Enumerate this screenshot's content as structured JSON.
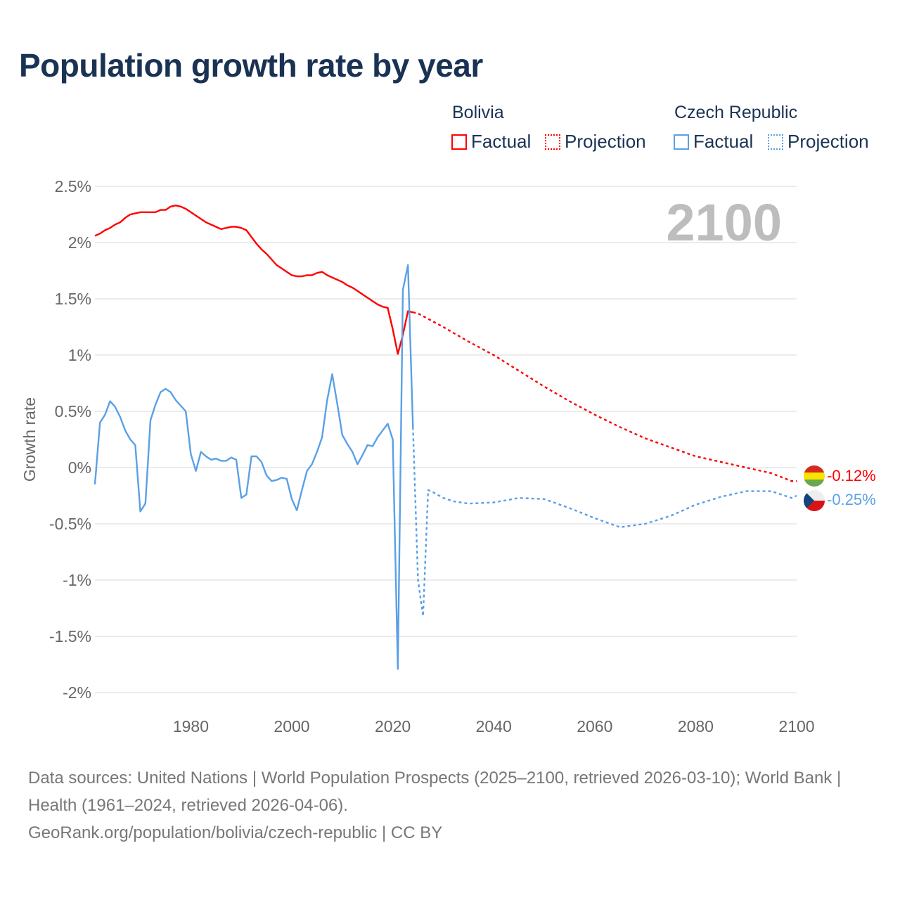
{
  "title": "Population growth rate by year",
  "legend": {
    "groups": [
      {
        "name": "Bolivia",
        "factual": "Factual",
        "projection": "Projection",
        "color": "#ff0000"
      },
      {
        "name": "Czech Republic",
        "factual": "Factual",
        "projection": "Projection",
        "color": "#5aa0e6"
      }
    ]
  },
  "year_label": "2100",
  "end_labels": {
    "bolivia": "-0.12%",
    "czech": "-0.25%"
  },
  "footer": {
    "line1": "Data sources: United Nations | World Population Prospects (2025–2100, retrieved 2026-03-10); World Bank | Health (1961–2024, retrieved 2026-04-06).",
    "line2": "GeoRank.org/population/bolivia/czech-republic | CC BY"
  },
  "chart_data": {
    "type": "line",
    "title": "Population growth rate by year",
    "xlabel": "",
    "ylabel": "Growth rate",
    "xlim": [
      1961,
      2100
    ],
    "ylim": [
      -2.1,
      2.6
    ],
    "x_ticks": [
      1980,
      2000,
      2020,
      2040,
      2060,
      2080,
      2100
    ],
    "y_ticks": [
      {
        "v": 2.5,
        "label": "2.5%"
      },
      {
        "v": 2,
        "label": "2%"
      },
      {
        "v": 1.5,
        "label": "1.5%"
      },
      {
        "v": 1,
        "label": "1%"
      },
      {
        "v": 0.5,
        "label": "0.5%"
      },
      {
        "v": 0,
        "label": "0%"
      },
      {
        "v": -0.5,
        "label": "-0.5%"
      },
      {
        "v": -1,
        "label": "-1%"
      },
      {
        "v": -1.5,
        "label": "-1.5%"
      },
      {
        "v": -2,
        "label": "-2%"
      }
    ],
    "grid": true,
    "series": [
      {
        "name": "Bolivia Factual",
        "color": "#ff0000",
        "style": "solid",
        "points": [
          [
            1961,
            2.06
          ],
          [
            1962,
            2.08
          ],
          [
            1963,
            2.11
          ],
          [
            1964,
            2.13
          ],
          [
            1965,
            2.16
          ],
          [
            1966,
            2.18
          ],
          [
            1967,
            2.22
          ],
          [
            1968,
            2.25
          ],
          [
            1969,
            2.26
          ],
          [
            1970,
            2.27
          ],
          [
            1971,
            2.27
          ],
          [
            1972,
            2.27
          ],
          [
            1973,
            2.27
          ],
          [
            1974,
            2.29
          ],
          [
            1975,
            2.29
          ],
          [
            1976,
            2.32
          ],
          [
            1977,
            2.33
          ],
          [
            1978,
            2.32
          ],
          [
            1979,
            2.3
          ],
          [
            1980,
            2.27
          ],
          [
            1981,
            2.24
          ],
          [
            1982,
            2.21
          ],
          [
            1983,
            2.18
          ],
          [
            1984,
            2.16
          ],
          [
            1985,
            2.14
          ],
          [
            1986,
            2.12
          ],
          [
            1987,
            2.13
          ],
          [
            1988,
            2.14
          ],
          [
            1989,
            2.14
          ],
          [
            1990,
            2.13
          ],
          [
            1991,
            2.11
          ],
          [
            1992,
            2.05
          ],
          [
            1993,
            1.99
          ],
          [
            1994,
            1.94
          ],
          [
            1995,
            1.9
          ],
          [
            1996,
            1.85
          ],
          [
            1997,
            1.8
          ],
          [
            1998,
            1.77
          ],
          [
            1999,
            1.74
          ],
          [
            2000,
            1.71
          ],
          [
            2001,
            1.7
          ],
          [
            2002,
            1.7
          ],
          [
            2003,
            1.71
          ],
          [
            2004,
            1.71
          ],
          [
            2005,
            1.73
          ],
          [
            2006,
            1.74
          ],
          [
            2007,
            1.71
          ],
          [
            2008,
            1.69
          ],
          [
            2009,
            1.67
          ],
          [
            2010,
            1.65
          ],
          [
            2011,
            1.62
          ],
          [
            2012,
            1.6
          ],
          [
            2013,
            1.57
          ],
          [
            2014,
            1.54
          ],
          [
            2015,
            1.51
          ],
          [
            2016,
            1.48
          ],
          [
            2017,
            1.45
          ],
          [
            2018,
            1.43
          ],
          [
            2019,
            1.42
          ],
          [
            2020,
            1.23
          ],
          [
            2021,
            1.01
          ],
          [
            2022,
            1.18
          ],
          [
            2023,
            1.39
          ],
          [
            2024,
            1.38
          ]
        ]
      },
      {
        "name": "Bolivia Projection",
        "color": "#ff0000",
        "style": "dotted",
        "points": [
          [
            2024,
            1.38
          ],
          [
            2025,
            1.37
          ],
          [
            2030,
            1.25
          ],
          [
            2035,
            1.12
          ],
          [
            2040,
            1.0
          ],
          [
            2045,
            0.86
          ],
          [
            2050,
            0.72
          ],
          [
            2055,
            0.59
          ],
          [
            2060,
            0.47
          ],
          [
            2065,
            0.36
          ],
          [
            2070,
            0.26
          ],
          [
            2075,
            0.18
          ],
          [
            2080,
            0.1
          ],
          [
            2085,
            0.05
          ],
          [
            2090,
            0.0
          ],
          [
            2095,
            -0.05
          ],
          [
            2099,
            -0.12
          ],
          [
            2100,
            -0.12
          ]
        ]
      },
      {
        "name": "Czech Republic Factual",
        "color": "#5aa0e6",
        "style": "solid",
        "points": [
          [
            1961,
            -0.15
          ],
          [
            1962,
            0.4
          ],
          [
            1963,
            0.47
          ],
          [
            1964,
            0.59
          ],
          [
            1965,
            0.54
          ],
          [
            1966,
            0.45
          ],
          [
            1967,
            0.33
          ],
          [
            1968,
            0.25
          ],
          [
            1969,
            0.2
          ],
          [
            1970,
            -0.39
          ],
          [
            1971,
            -0.32
          ],
          [
            1972,
            0.42
          ],
          [
            1973,
            0.56
          ],
          [
            1974,
            0.67
          ],
          [
            1975,
            0.7
          ],
          [
            1976,
            0.67
          ],
          [
            1977,
            0.6
          ],
          [
            1978,
            0.55
          ],
          [
            1979,
            0.5
          ],
          [
            1980,
            0.12
          ],
          [
            1981,
            -0.03
          ],
          [
            1982,
            0.14
          ],
          [
            1983,
            0.1
          ],
          [
            1984,
            0.07
          ],
          [
            1985,
            0.08
          ],
          [
            1986,
            0.06
          ],
          [
            1987,
            0.06
          ],
          [
            1988,
            0.09
          ],
          [
            1989,
            0.07
          ],
          [
            1990,
            -0.27
          ],
          [
            1991,
            -0.24
          ],
          [
            1992,
            0.1
          ],
          [
            1993,
            0.1
          ],
          [
            1994,
            0.05
          ],
          [
            1995,
            -0.07
          ],
          [
            1996,
            -0.12
          ],
          [
            1997,
            -0.11
          ],
          [
            1998,
            -0.09
          ],
          [
            1999,
            -0.1
          ],
          [
            2000,
            -0.28
          ],
          [
            2001,
            -0.38
          ],
          [
            2002,
            -0.2
          ],
          [
            2003,
            -0.03
          ],
          [
            2004,
            0.03
          ],
          [
            2005,
            0.14
          ],
          [
            2006,
            0.27
          ],
          [
            2007,
            0.6
          ],
          [
            2008,
            0.83
          ],
          [
            2009,
            0.57
          ],
          [
            2010,
            0.29
          ],
          [
            2011,
            0.21
          ],
          [
            2012,
            0.14
          ],
          [
            2013,
            0.03
          ],
          [
            2014,
            0.11
          ],
          [
            2015,
            0.2
          ],
          [
            2016,
            0.19
          ],
          [
            2017,
            0.27
          ],
          [
            2018,
            0.33
          ],
          [
            2019,
            0.39
          ],
          [
            2020,
            0.25
          ],
          [
            2021,
            -1.79
          ],
          [
            2022,
            1.58
          ],
          [
            2023,
            1.8
          ],
          [
            2024,
            0.36
          ]
        ]
      },
      {
        "name": "Czech Republic Projection",
        "color": "#5aa0e6",
        "style": "dotted",
        "points": [
          [
            2024,
            0.36
          ],
          [
            2025,
            -1.0
          ],
          [
            2026,
            -1.32
          ],
          [
            2027,
            -0.2
          ],
          [
            2028,
            -0.22
          ],
          [
            2030,
            -0.27
          ],
          [
            2032,
            -0.3
          ],
          [
            2035,
            -0.32
          ],
          [
            2040,
            -0.31
          ],
          [
            2045,
            -0.27
          ],
          [
            2050,
            -0.28
          ],
          [
            2055,
            -0.36
          ],
          [
            2060,
            -0.45
          ],
          [
            2065,
            -0.53
          ],
          [
            2070,
            -0.5
          ],
          [
            2075,
            -0.43
          ],
          [
            2080,
            -0.33
          ],
          [
            2085,
            -0.26
          ],
          [
            2090,
            -0.21
          ],
          [
            2095,
            -0.21
          ],
          [
            2099,
            -0.27
          ],
          [
            2100,
            -0.25
          ]
        ]
      }
    ]
  }
}
